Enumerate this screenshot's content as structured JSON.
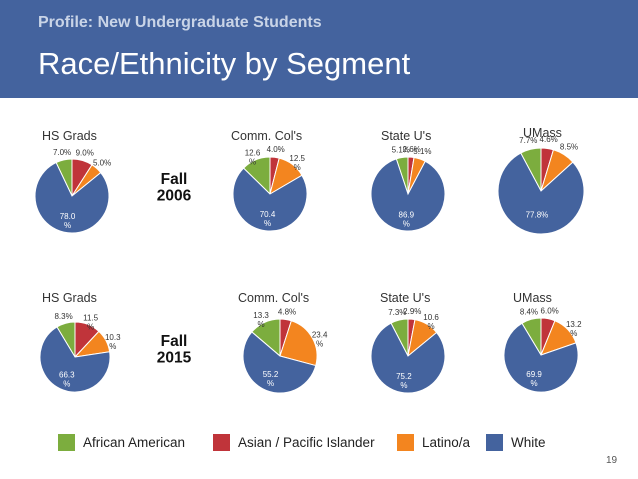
{
  "header": {
    "subtitle": "Profile: New Undergraduate Students",
    "title": "Race/Ethnicity by Segment"
  },
  "page_number": "19",
  "colors": {
    "African American": "#7cad3e",
    "Asian / Pacific Islander": "#c0343a",
    "Latino/a": "#f3851f",
    "White": "#44639e"
  },
  "legend": [
    {
      "label": "African American",
      "color": "#7cad3e"
    },
    {
      "label": "Asian / Pacific Islander",
      "color": "#c0343a"
    },
    {
      "label": "Latino/a",
      "color": "#f3851f"
    },
    {
      "label": "White",
      "color": "#44639e"
    }
  ],
  "row_labels": [
    [
      "Fall",
      "2006"
    ],
    [
      "Fall",
      "2015"
    ]
  ],
  "chart_data": [
    {
      "type": "pie",
      "year": "Fall 2006",
      "title": "HS Grads",
      "labels": [
        "African American",
        "Asian / Pacific Islander",
        "Latino/a",
        "White"
      ],
      "values": [
        7.0,
        9.0,
        5.0,
        78.0
      ],
      "value_labels": [
        "7.0%",
        "9.0%",
        "5.0%",
        "78.0\n%"
      ]
    },
    {
      "type": "pie",
      "year": "Fall 2006",
      "title": "Comm. Col's",
      "labels": [
        "African American",
        "Asian / Pacific Islander",
        "Latino/a",
        "White"
      ],
      "values": [
        12.6,
        4.0,
        12.5,
        70.4
      ],
      "value_labels": [
        "12.6\n%",
        "4.0%",
        "12.5\n%",
        "70.4\n%"
      ]
    },
    {
      "type": "pie",
      "year": "Fall 2006",
      "title": "State U's",
      "labels": [
        "African American",
        "Asian / Pacific Islander",
        "Latino/a",
        "White"
      ],
      "values": [
        5.1,
        2.6,
        5.1,
        86.9
      ],
      "value_labels": [
        "5.1%",
        "2.6%",
        "5.1%",
        "86.9\n%"
      ]
    },
    {
      "type": "pie",
      "year": "Fall 2006",
      "title": "UMass",
      "labels": [
        "African American",
        "Asian / Pacific Islander",
        "Latino/a",
        "White"
      ],
      "values": [
        7.7,
        4.6,
        8.5,
        77.8
      ],
      "value_labels": [
        "7.7%",
        "4.6%",
        "8.5%",
        "77.8%"
      ]
    },
    {
      "type": "pie",
      "year": "Fall 2015",
      "title": "HS Grads",
      "labels": [
        "African American",
        "Asian / Pacific Islander",
        "Latino/a",
        "White"
      ],
      "values": [
        8.3,
        11.5,
        10.3,
        66.3
      ],
      "value_labels": [
        "8.3%",
        "11.5\n%",
        "10.3\n%",
        "66.3\n%"
      ]
    },
    {
      "type": "pie",
      "year": "Fall 2015",
      "title": "Comm. Col's",
      "labels": [
        "African American",
        "Asian / Pacific Islander",
        "Latino/a",
        "White"
      ],
      "values": [
        13.3,
        4.8,
        23.4,
        55.2
      ],
      "value_labels": [
        "13.3\n%",
        "4.8%",
        "23.4\n%",
        "55.2\n%"
      ]
    },
    {
      "type": "pie",
      "year": "Fall 2015",
      "title": "State U's",
      "labels": [
        "African American",
        "Asian / Pacific Islander",
        "Latino/a",
        "White"
      ],
      "values": [
        7.3,
        2.9,
        10.6,
        75.2
      ],
      "value_labels": [
        "7.3%",
        "2.9%",
        "10.6\n%",
        "75.2\n%"
      ]
    },
    {
      "type": "pie",
      "year": "Fall 2015",
      "title": "UMass",
      "labels": [
        "African American",
        "Asian / Pacific Islander",
        "Latino/a",
        "White"
      ],
      "values": [
        8.4,
        6.0,
        13.2,
        69.9
      ],
      "value_labels": [
        "8.4%",
        "6.0%",
        "13.2\n%",
        "69.9\n%"
      ]
    }
  ]
}
